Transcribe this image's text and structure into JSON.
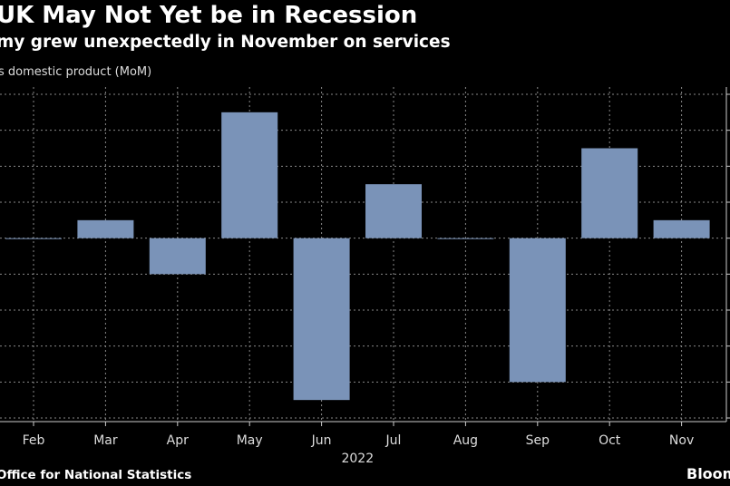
{
  "header": {
    "title": "UK May Not Yet be in Recession",
    "subtitle": "my grew unexpectedly in November on services",
    "ylabel": "s domestic product (MoM)"
  },
  "footer": {
    "source": "Office for National Statistics",
    "logo": "Bloom"
  },
  "chart_data": {
    "type": "bar",
    "categories": [
      "Feb",
      "Mar",
      "Apr",
      "May",
      "Jun",
      "Jul",
      "Aug",
      "Sep",
      "Oct",
      "Nov"
    ],
    "values": [
      0.0,
      0.1,
      -0.2,
      0.7,
      -0.9,
      0.3,
      0.0,
      -0.8,
      0.5,
      0.1
    ],
    "year_label": "2022",
    "ylim": [
      -1.0,
      0.8
    ],
    "grid": true,
    "bar_color": "#7a93b8"
  }
}
